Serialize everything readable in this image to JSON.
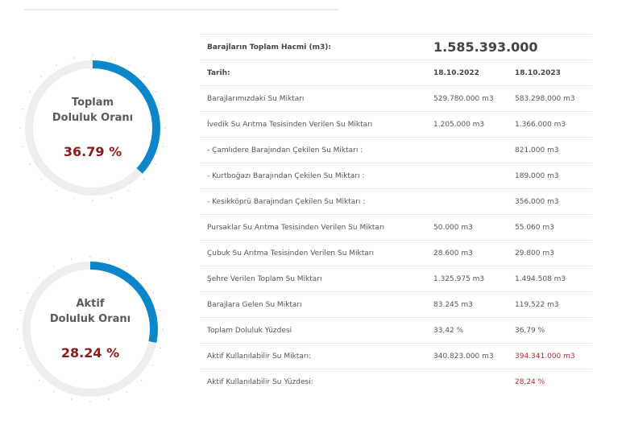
{
  "gauges": [
    {
      "label_line1": "Toplam",
      "label_line2": "Doluluk Oranı",
      "value_text": "36.79 %",
      "fraction": 0.3679
    },
    {
      "label_line1": "Aktif",
      "label_line2": "Doluluk Oranı",
      "value_text": "28.24 %",
      "fraction": 0.2824
    }
  ],
  "colors": {
    "gauge_fill": "#0a86c9",
    "gauge_track": "#eeeeee",
    "gauge_value": "#8b1a1a",
    "highlight": "#c0272d"
  },
  "table": {
    "total_volume_label": "Barajların Toplam Hacmi (m3):",
    "total_volume_value": "1.585.393.000",
    "date_label": "Tarih:",
    "date_2022": "18.10.2022",
    "date_2023": "18.10.2023",
    "rows": [
      {
        "label": "Barajlarımızdaki Su Miktarı",
        "v2022": "529.780.000 m3",
        "v2023": "583.298.000 m3"
      },
      {
        "label": "İvedik Su Arıtma Tesisinden Verilen Su Miktarı",
        "v2022": "1.205.000 m3",
        "v2023": "1.366.000 m3"
      },
      {
        "label": "- Çamlıdere Barajından Çekilen Su Miktarı :",
        "v2022": "",
        "v2023": "821.000 m3"
      },
      {
        "label": "- Kurtboğazı Barajından Çekilen Su Miktarı :",
        "v2022": "",
        "v2023": "189.000 m3"
      },
      {
        "label": "- Kesikköprü Barajından Çekilen Su Miktarı :",
        "v2022": "",
        "v2023": "356.000 m3"
      },
      {
        "label": "Pursaklar Su Arıtma Tesisinden Verilen Su Miktarı",
        "v2022": "50.000 m3",
        "v2023": "55.060 m3"
      },
      {
        "label": "Çubuk Su Arıtma Tesisinden Verilen Su Miktarı",
        "v2022": "28.600 m3",
        "v2023": "29.800 m3"
      },
      {
        "label": "Şehre Verilen Toplam Su Miktarı",
        "v2022": "1.325.975 m3",
        "v2023": "1.494.508 m3"
      },
      {
        "label": "Barajlara Gelen Su Miktarı",
        "v2022": "83.245 m3",
        "v2023": "119.522 m3"
      },
      {
        "label": "Toplam Doluluk Yüzdesi",
        "v2022": "33,42 %",
        "v2023": "36,79 %"
      },
      {
        "label": "Aktif Kullanılabilir Su Miktarı:",
        "v2022": "340.823.000 m3",
        "v2023": "394.341.000 m3"
      },
      {
        "label": "Aktif Kullanılabilir Su Yüzdesi:",
        "v2022": "",
        "v2023": "28,24 %"
      }
    ]
  }
}
